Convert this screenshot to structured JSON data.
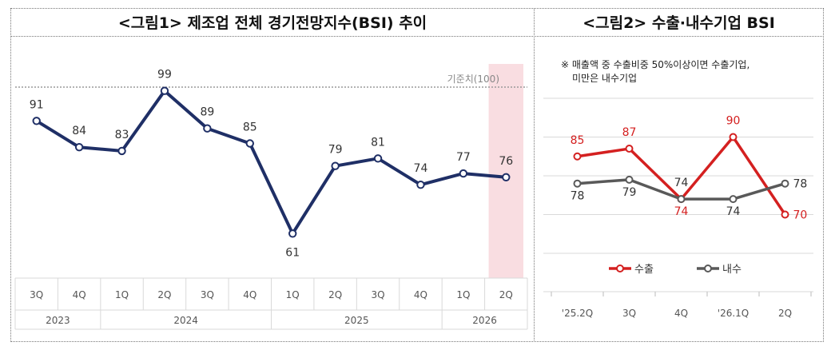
{
  "figure1": {
    "title": "<그림1> 제조업 전체 경기전망지수(BSI) 추이",
    "chart_data": {
      "type": "line",
      "title": "<그림1> 제조업 전체 경기전망지수(BSI) 추이",
      "categories": [
        "3Q",
        "4Q",
        "1Q",
        "2Q",
        "3Q",
        "4Q",
        "1Q",
        "2Q",
        "3Q",
        "4Q",
        "1Q",
        "2Q"
      ],
      "year_groups": [
        {
          "label": "2023",
          "count": 2
        },
        {
          "label": "2024",
          "count": 4
        },
        {
          "label": "2025",
          "count": 4
        },
        {
          "label": "2026",
          "count": 2
        }
      ],
      "series": [
        {
          "name": "BSI",
          "values": [
            91,
            84,
            83,
            99,
            89,
            85,
            61,
            79,
            81,
            74,
            77,
            76
          ],
          "color": "#1f2f66"
        }
      ],
      "reference_line": {
        "label": "기준치(100)",
        "value": 100
      },
      "highlight_index": 11,
      "highlight_color": "#f9dde1",
      "ylim": [
        50,
        100
      ]
    }
  },
  "figure2": {
    "title": "<그림2> 수출·내수기업 BSI",
    "note_lines": [
      "※ 매출액 중 수출비중 50%이상이면 수출기업,",
      "미만은 내수기업"
    ],
    "chart_data": {
      "type": "line",
      "title": "<그림2> 수출·내수기업 BSI",
      "categories": [
        "'25.2Q",
        "3Q",
        "4Q",
        "'26.1Q",
        "2Q"
      ],
      "series": [
        {
          "name": "수출",
          "values": [
            85,
            87,
            74,
            90,
            70
          ],
          "color": "#d42020",
          "label_color": "#d42020"
        },
        {
          "name": "내수",
          "values": [
            78,
            79,
            74,
            74,
            78
          ],
          "color": "#595959",
          "label_color": "#333333"
        }
      ],
      "legend": "bottom-center",
      "ylim": [
        60,
        100
      ]
    }
  }
}
